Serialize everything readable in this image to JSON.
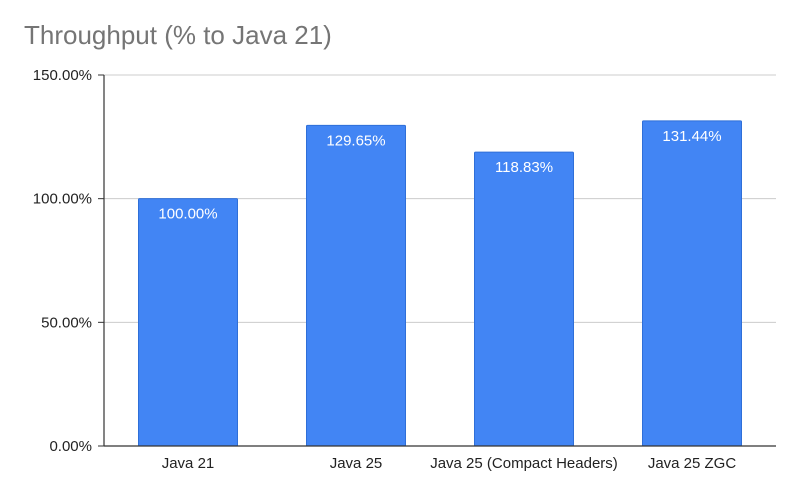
{
  "chart_data": {
    "type": "bar",
    "title": "Throughput (% to Java 21)",
    "xlabel": "",
    "ylabel": "",
    "categories": [
      "Java 21",
      "Java 25",
      "Java 25 (Compact Headers)",
      "Java 25 ZGC"
    ],
    "values": [
      100.0,
      129.65,
      118.83,
      131.44
    ],
    "data_labels": [
      "100.00%",
      "129.65%",
      "118.83%",
      "131.44%"
    ],
    "y_ticks": [
      0,
      50,
      100,
      150
    ],
    "y_tick_labels": [
      "0.00%",
      "50.00%",
      "100.00%",
      "150.00%"
    ],
    "ylim": [
      0,
      150
    ],
    "grid": true,
    "legend": "none",
    "bar_color": "#4285f4",
    "gridline_color": "#cccccc",
    "axis_color": "#333333"
  }
}
